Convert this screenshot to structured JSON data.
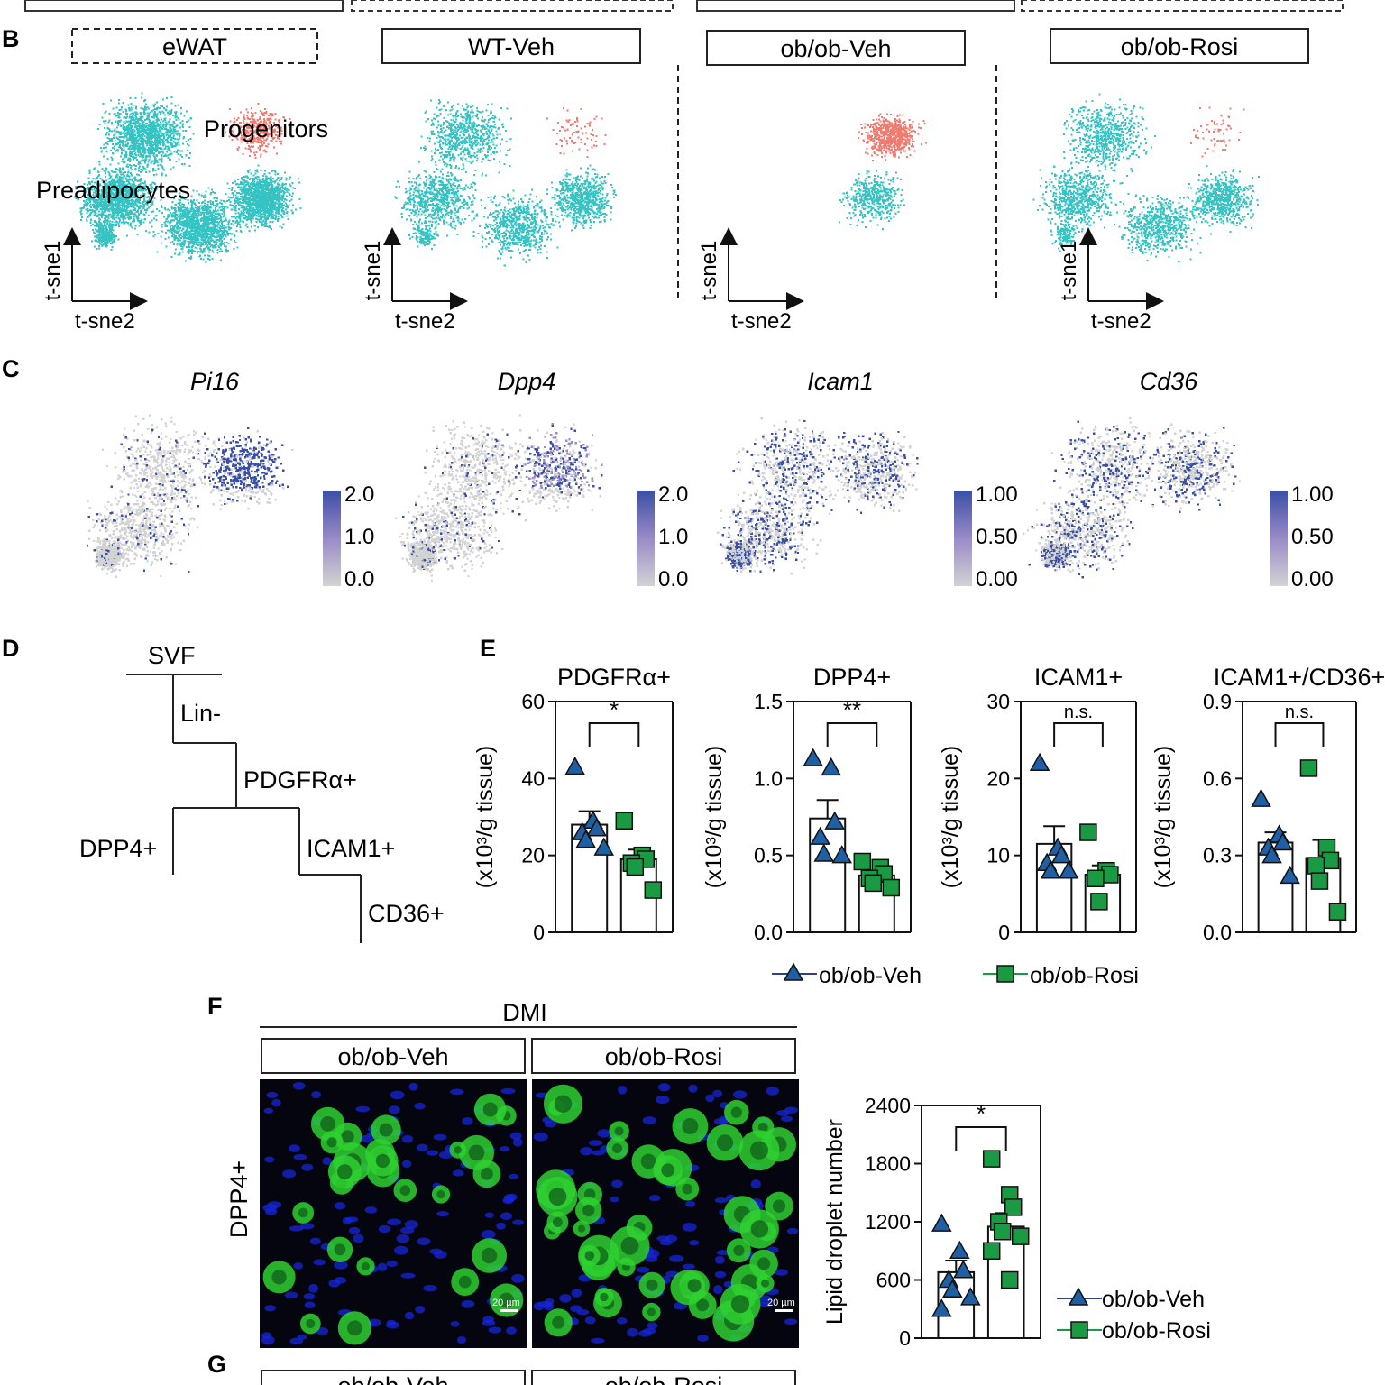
{
  "colors": {
    "teal": "#35c3c3",
    "salmon": "#f07b70",
    "blue": "#2d4fa8",
    "lavender": "#9a8ac8",
    "grey": "#d3d3d3",
    "veh": "#1f5fa3",
    "rosi": "#1a9a42",
    "fluor_green": "#2fd130",
    "fluor_blue": "#1725d8"
  },
  "panel_letters": {
    "B": "B",
    "C": "C",
    "D": "D",
    "E": "E",
    "F": "F",
    "G": "G"
  },
  "panel_b": {
    "titles": [
      "eWAT",
      "WT-Veh",
      "ob/ob-Veh",
      "ob/ob-Rosi"
    ],
    "cluster_labels": {
      "progenitors": "Progenitors",
      "preadipocytes": "Preadipocytes"
    },
    "axis_y": "t-sne1",
    "axis_x": "t-sne2"
  },
  "panel_c": {
    "genes": [
      "Pi16",
      "Dpp4",
      "Icam1",
      "Cd36"
    ],
    "scales": [
      [
        "2.0",
        "1.0",
        "0.0"
      ],
      [
        "2.0",
        "1.0",
        "0.0"
      ],
      [
        "1.00",
        "0.50",
        "0.00"
      ],
      [
        "1.00",
        "0.50",
        "0.00"
      ]
    ]
  },
  "panel_d": {
    "nodes": {
      "svf": "SVF",
      "lin": "Lin-",
      "pdgfra": "PDGFRα+",
      "dpp4": "DPP4+",
      "icam1": "ICAM1+",
      "cd36": "CD36+"
    }
  },
  "legend": {
    "veh": "ob/ob-Veh",
    "rosi": "ob/ob-Rosi"
  },
  "panel_f": {
    "header": "DMI",
    "col_labels": [
      "ob/ob-Veh",
      "ob/ob-Rosi"
    ],
    "row_label": "DPP4+",
    "scale_bar": "20 µm"
  },
  "panel_g": {
    "col_labels": [
      "ob/ob-Veh",
      "ob/ob-Rosi"
    ]
  },
  "chart_data": [
    {
      "type": "bar",
      "title": "PDGFRα+",
      "ylabel": "(x10³/g tissue)",
      "ylim": [
        0,
        60
      ],
      "yticks": [
        "0",
        "20",
        "40",
        "60"
      ],
      "significance": "*",
      "series": [
        {
          "name": "ob/ob-Veh",
          "mean": 28,
          "sem": 3.5,
          "points": [
            43,
            29,
            27,
            26,
            24,
            22
          ]
        },
        {
          "name": "ob/ob-Rosi",
          "mean": 19,
          "sem": 2.5,
          "points": [
            29,
            20,
            19,
            18,
            17,
            11
          ]
        }
      ]
    },
    {
      "type": "bar",
      "title": "DPP4+",
      "ylabel": "(x10³/g tissue)",
      "ylim": [
        0,
        1.5
      ],
      "yticks": [
        "0.0",
        "0.5",
        "1.0",
        "1.5"
      ],
      "significance": "**",
      "series": [
        {
          "name": "ob/ob-Veh",
          "mean": 0.74,
          "sem": 0.12,
          "points": [
            1.13,
            1.07,
            0.72,
            0.62,
            0.51,
            0.5
          ]
        },
        {
          "name": "ob/ob-Rosi",
          "mean": 0.37,
          "sem": 0.03,
          "points": [
            0.46,
            0.42,
            0.38,
            0.35,
            0.32,
            0.29
          ]
        }
      ]
    },
    {
      "type": "bar",
      "title": "ICAM1+",
      "ylabel": "(x10³/g tissue)",
      "ylim": [
        0,
        30
      ],
      "yticks": [
        "0",
        "10",
        "20",
        "30"
      ],
      "significance": "n.s.",
      "series": [
        {
          "name": "ob/ob-Veh",
          "mean": 11.5,
          "sem": 2.3,
          "points": [
            22,
            11,
            10,
            9,
            8,
            8
          ]
        },
        {
          "name": "ob/ob-Rosi",
          "mean": 7.5,
          "sem": 1.2,
          "points": [
            13,
            8,
            7.5,
            7,
            4
          ]
        }
      ]
    },
    {
      "type": "bar",
      "title": "ICAM1+/CD36+",
      "ylabel": "(x10³/g tissue)",
      "ylim": [
        0,
        0.9
      ],
      "yticks": [
        "0.0",
        "0.3",
        "0.6",
        "0.9"
      ],
      "significance": "n.s.",
      "series": [
        {
          "name": "ob/ob-Veh",
          "mean": 0.35,
          "sem": 0.04,
          "points": [
            0.52,
            0.38,
            0.35,
            0.33,
            0.3,
            0.22
          ]
        },
        {
          "name": "ob/ob-Rosi",
          "mean": 0.29,
          "sem": 0.07,
          "points": [
            0.64,
            0.33,
            0.28,
            0.26,
            0.2,
            0.08
          ]
        }
      ]
    },
    {
      "type": "bar",
      "title": "",
      "ylabel": "Lipid droplet number",
      "ylim": [
        0,
        2400
      ],
      "yticks": [
        "0",
        "600",
        "1200",
        "1800",
        "2400"
      ],
      "significance": "*",
      "series": [
        {
          "name": "ob/ob-Veh",
          "mean": 680,
          "sem": 120,
          "points": [
            1180,
            900,
            700,
            600,
            500,
            420,
            300
          ]
        },
        {
          "name": "ob/ob-Rosi",
          "mean": 1150,
          "sem": 140,
          "points": [
            1850,
            1480,
            1350,
            1200,
            1100,
            1050,
            900,
            600
          ]
        }
      ]
    }
  ]
}
